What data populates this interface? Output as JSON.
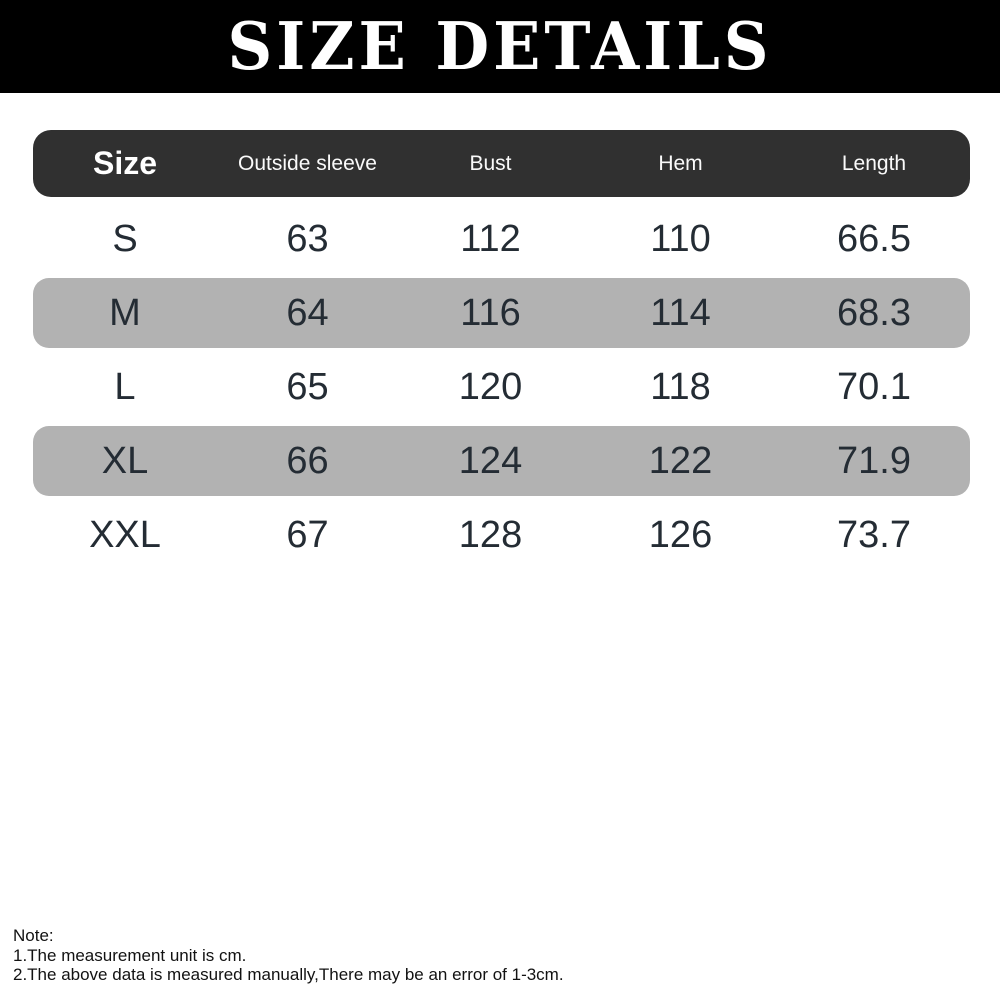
{
  "header": {
    "title": "SIZE DETAILS"
  },
  "table": {
    "headers": [
      "Size",
      "Outside sleeve",
      "Bust",
      "Hem",
      "Length"
    ],
    "rows": [
      {
        "size": "S",
        "values": [
          "63",
          "112",
          "110",
          "66.5"
        ],
        "highlighted": false
      },
      {
        "size": "M",
        "values": [
          "64",
          "116",
          "114",
          "68.3"
        ],
        "highlighted": true
      },
      {
        "size": "L",
        "values": [
          "65",
          "120",
          "118",
          "70.1"
        ],
        "highlighted": false
      },
      {
        "size": "XL",
        "values": [
          "66",
          "124",
          "122",
          "71.9"
        ],
        "highlighted": true
      },
      {
        "size": "XXL",
        "values": [
          "67",
          "128",
          "126",
          "73.7"
        ],
        "highlighted": false
      }
    ]
  },
  "notes": {
    "heading": "Note:",
    "line1": "1.The measurement unit is cm.",
    "line2": "2.The above data is measured manually,There may be an error of 1-3cm."
  },
  "colors": {
    "banner_bg": "#000000",
    "title_text": "#ffffff",
    "header_bg": "#303030",
    "header_text": "#ffffff",
    "row_highlight": "#b2b2b2",
    "cell_text": "#242c34",
    "note_text": "#121212",
    "page_bg": "#ffffff"
  },
  "chart_data": {
    "type": "table",
    "title": "SIZE DETAILS",
    "columns": [
      "Size",
      "Outside sleeve",
      "Bust",
      "Hem",
      "Length"
    ],
    "rows": [
      [
        "S",
        63,
        112,
        110,
        66.5
      ],
      [
        "M",
        64,
        116,
        114,
        68.3
      ],
      [
        "L",
        65,
        120,
        118,
        70.1
      ],
      [
        "XL",
        66,
        124,
        122,
        71.9
      ],
      [
        "XXL",
        67,
        128,
        126,
        73.7
      ]
    ],
    "unit": "cm",
    "highlighted_rows": [
      "M",
      "XL"
    ],
    "notes": [
      "1.The measurement unit is cm.",
      "2.The above data is measured manually,There may be an error of 1-3cm."
    ]
  }
}
